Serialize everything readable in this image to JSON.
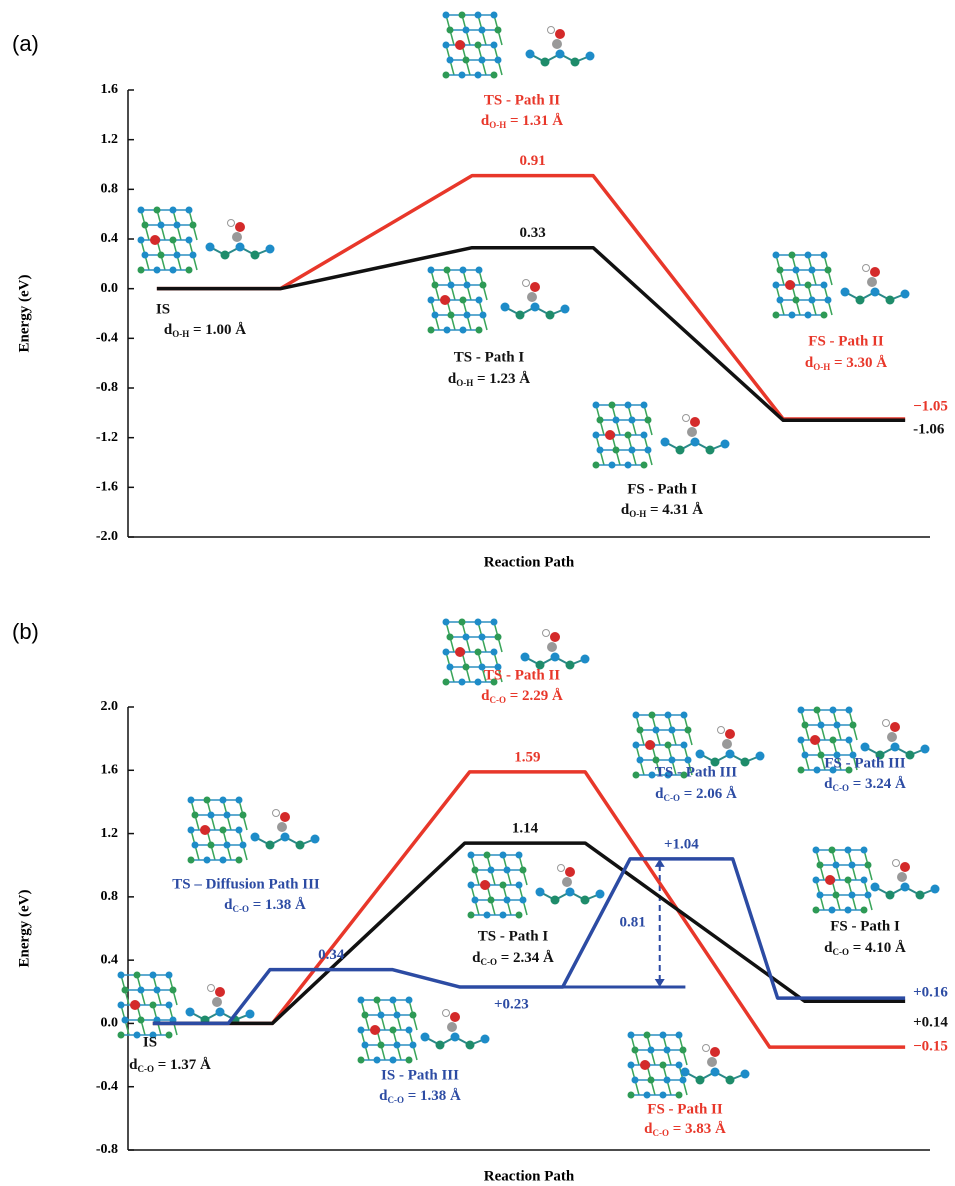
{
  "chart_data": [
    {
      "type": "line",
      "panel_label": "(a)",
      "ylabel": "Energy (eV)",
      "xlabel": "Reaction Path",
      "xlim": [
        0,
        10
      ],
      "ylim": [
        -2,
        1.6
      ],
      "yticks": [
        {
          "value": -2,
          "label": "-2.0"
        },
        -1.6,
        -1.2,
        -0.8,
        -0.4,
        {
          "value": 0,
          "label": "0.0"
        },
        0.4,
        0.8,
        1.2,
        1.6
      ],
      "series": [
        {
          "color": "#e8372a",
          "x": [
            0.36,
            1.9,
            4.29,
            5.8,
            8.17,
            9.69
          ],
          "values": [
            0,
            0,
            0.91,
            0.91,
            -1.05,
            -1.05
          ],
          "value_labels": [
            null,
            null,
            "0.91",
            null,
            null,
            "−1.05"
          ]
        },
        {
          "color": "#111111",
          "x": [
            0.36,
            1.9,
            4.29,
            5.8,
            8.17,
            9.69
          ],
          "values": [
            0,
            0,
            0.33,
            0.33,
            -1.06,
            -1.06
          ],
          "value_labels": [
            null,
            null,
            "0.33",
            null,
            null,
            "-1.06"
          ]
        }
      ],
      "annotations": [
        {
          "title": "IS",
          "color": "#111111",
          "distance": {
            "symbol": "d",
            "subscript": "O-H",
            "text": " = 1.00 Å"
          }
        },
        {
          "title": "TS - Path II",
          "color": "#e8372a",
          "distance": {
            "symbol": "d",
            "subscript": "O-H",
            "text": " = 1.31 Å"
          }
        },
        {
          "title": "TS - Path I",
          "color": "#111111",
          "distance": {
            "symbol": "d",
            "subscript": "O-H",
            "text": " = 1.23 Å"
          }
        },
        {
          "title": "FS - Path II",
          "color": "#e8372a",
          "distance": {
            "symbol": "d",
            "subscript": "O-H",
            "text": " = 3.30 Å"
          }
        },
        {
          "title": "FS - Path I",
          "color": "#111111",
          "distance": {
            "symbol": "d",
            "subscript": "O-H",
            "text": " = 4.31 Å"
          }
        }
      ]
    },
    {
      "type": "line",
      "panel_label": "(b)",
      "ylabel": "Energy (eV)",
      "xlabel": "Reaction Path",
      "xlim": [
        0,
        10
      ],
      "ylim": [
        -0.8,
        2
      ],
      "yticks": [
        -0.8,
        -0.4,
        {
          "value": 0,
          "label": "0.0"
        },
        0.4,
        0.8,
        1.2,
        1.6,
        {
          "value": 2,
          "label": "2.0"
        }
      ],
      "series": [
        {
          "color": "#e8372a",
          "x": [
            0.31,
            1.8,
            4.26,
            5.7,
            8.0,
            9.69
          ],
          "values": [
            0,
            0,
            1.59,
            1.59,
            -0.15,
            -0.15
          ],
          "value_labels": [
            null,
            null,
            "1.59",
            null,
            null,
            "−0.15"
          ]
        },
        {
          "color": "#111111",
          "x": [
            0.31,
            1.8,
            4.2,
            5.7,
            8.44,
            9.69
          ],
          "values": [
            0,
            0,
            1.14,
            1.14,
            0.14,
            0.14
          ],
          "value_labels": [
            null,
            null,
            "1.14",
            null,
            null,
            "+0.14"
          ]
        },
        {
          "color": "#2c4ba3",
          "x": [
            0.31,
            1.25,
            1.77,
            3.3,
            4.14,
            5.42,
            6.26,
            7.54,
            8.1,
            9.69
          ],
          "values": [
            0,
            0,
            0.34,
            0.34,
            0.23,
            0.23,
            1.04,
            1.04,
            0.16,
            0.16
          ],
          "value_labels": [
            null,
            null,
            "0.34",
            null,
            "+0.23",
            null,
            "+1.04",
            null,
            null,
            "+0.16"
          ]
        }
      ],
      "gap": {
        "color": "#2c4ba3",
        "x": 6.63,
        "from": 0.23,
        "to": 1.04,
        "value": 0.81,
        "line_x": [
          5.42,
          6.95
        ]
      },
      "annotations": [
        {
          "title": "TS - Path II",
          "color": "#e8372a",
          "distance": {
            "symbol": "d",
            "subscript": "C-O",
            "text": " = 2.29 Å"
          }
        },
        {
          "title": "TS - Path III",
          "color": "#2c4ba3",
          "distance": {
            "symbol": "d",
            "subscript": "C-O",
            "text": " = 2.06 Å"
          }
        },
        {
          "title": "FS - Path III",
          "color": "#2c4ba3",
          "distance": {
            "symbol": "d",
            "subscript": "C-O",
            "text": " = 3.24 Å"
          }
        },
        {
          "title": "TS – Diffusion Path III",
          "color": "#2c4ba3",
          "distance": {
            "symbol": "d",
            "subscript": "C-O",
            "text": " = 1.38 Å"
          }
        },
        {
          "title": "TS - Path I",
          "color": "#111111",
          "distance": {
            "symbol": "d",
            "subscript": "C-O",
            "text": " = 2.34 Å"
          }
        },
        {
          "title": "FS - Path I",
          "color": "#111111",
          "distance": {
            "symbol": "d",
            "subscript": "C-O",
            "text": " = 4.10 Å"
          }
        },
        {
          "title": "IS",
          "color": "#111111",
          "distance": {
            "symbol": "d",
            "subscript": "C-O",
            "text": " = 1.37 Å"
          }
        },
        {
          "title": "IS - Path III",
          "color": "#2c4ba3",
          "distance": {
            "symbol": "d",
            "subscript": "C-O",
            "text": " = 1.38 Å"
          }
        },
        {
          "title": "FS - Path II",
          "color": "#e8372a",
          "distance": {
            "symbol": "d",
            "subscript": "C-O",
            "text": " = 3.83 Å"
          }
        }
      ]
    }
  ]
}
